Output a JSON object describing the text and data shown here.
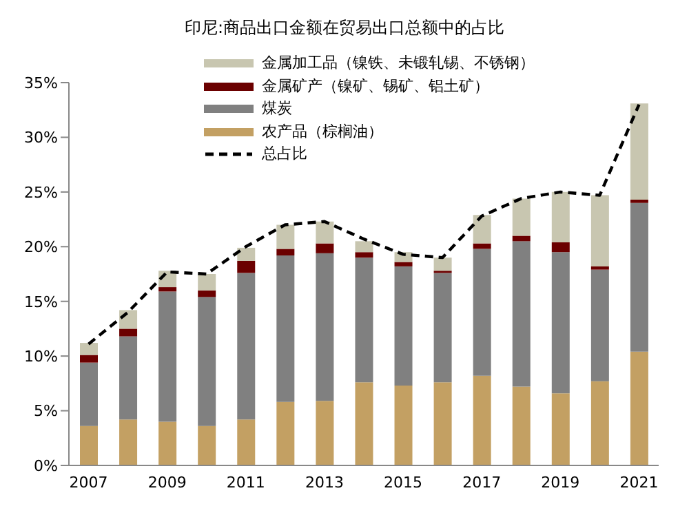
{
  "chart_data": {
    "type": "bar",
    "stacked": true,
    "title": "印尼:商品出口金额在贸易出口总额中的占比",
    "categories": [
      "2007",
      null,
      "2009",
      null,
      "2011",
      null,
      "2013",
      null,
      "2015",
      null,
      "2017",
      null,
      "2019",
      null,
      "2021"
    ],
    "series": [
      {
        "name": "农产品（棕榈油）",
        "color": "#c3a063",
        "values": [
          3.6,
          4.2,
          4.0,
          3.6,
          4.2,
          5.8,
          5.9,
          7.6,
          7.3,
          7.6,
          8.2,
          7.2,
          6.6,
          7.7,
          10.4
        ]
      },
      {
        "name": "煤炭",
        "color": "#808080",
        "values": [
          5.8,
          7.6,
          11.9,
          11.8,
          13.4,
          13.4,
          13.5,
          11.4,
          10.9,
          10.0,
          11.6,
          13.3,
          12.9,
          10.2,
          13.6
        ]
      },
      {
        "name": "金属矿产（镍矿、锡矿、铝土矿）",
        "color": "#6b0000",
        "values": [
          0.7,
          0.7,
          0.4,
          0.6,
          1.1,
          0.6,
          0.9,
          0.5,
          0.4,
          0.2,
          0.5,
          0.5,
          0.9,
          0.3,
          0.3
        ]
      },
      {
        "name": "金属加工品（镍铁、未锻轧锡、不锈钢）",
        "color": "#c8c6b0",
        "values": [
          1.1,
          1.7,
          1.5,
          1.5,
          1.2,
          2.2,
          2.0,
          1.0,
          0.9,
          1.2,
          2.6,
          3.4,
          4.6,
          6.5,
          8.8
        ]
      },
      {
        "name": "总占比",
        "type": "line",
        "line_style": "dashed",
        "color": "#000000",
        "values": [
          11.1,
          14.0,
          17.7,
          17.5,
          20.0,
          22.0,
          22.3,
          20.7,
          19.3,
          19.0,
          22.8,
          24.4,
          25.0,
          24.7,
          33.0
        ]
      }
    ],
    "ylim": [
      0,
      35
    ],
    "yticks": [
      {
        "value": 0,
        "label": "0%"
      },
      {
        "value": 5,
        "label": "5%"
      },
      {
        "value": 10,
        "label": "10%"
      },
      {
        "value": 15,
        "label": "15%"
      },
      {
        "value": 20,
        "label": "20%"
      },
      {
        "value": 25,
        "label": "25%"
      },
      {
        "value": 30,
        "label": "30%"
      },
      {
        "value": 35,
        "label": "35%"
      }
    ],
    "grid": false,
    "legend": "top left",
    "marker": "none"
  }
}
